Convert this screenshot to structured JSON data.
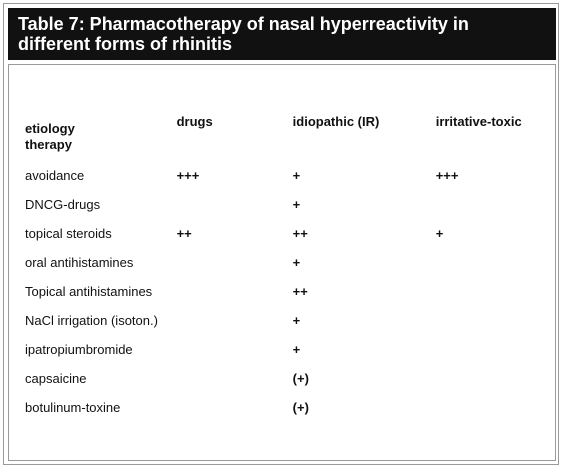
{
  "header": {
    "title": "Table 7: Pharmacotherapy of nasal hyperreactivity in different forms of rhinitis"
  },
  "table": {
    "corner": [
      "etiology",
      "therapy"
    ],
    "columns": [
      "drugs",
      "idiopathic (IR)",
      "irritative-toxic"
    ],
    "rows": [
      [
        "avoidance",
        "+++",
        "+",
        "+++"
      ],
      [
        "DNCG-drugs",
        null,
        "+",
        null
      ],
      [
        "topical steroids",
        "++",
        "++",
        "+"
      ],
      [
        "oral antihistamines",
        null,
        "+",
        null
      ],
      [
        "Topical antihistamines",
        null,
        "++",
        null
      ],
      [
        "NaCl irrigation (isoton.)",
        null,
        "+",
        null
      ],
      [
        "ipatropiumbromide",
        null,
        "+",
        null
      ],
      [
        "capsaicine",
        null,
        "(+)",
        null
      ],
      [
        "botulinum-toxine",
        null,
        "(+)",
        null
      ]
    ]
  }
}
